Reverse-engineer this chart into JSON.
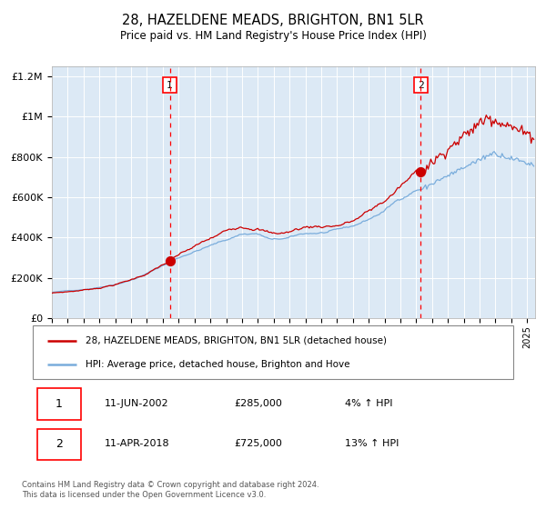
{
  "title": "28, HAZELDENE MEADS, BRIGHTON, BN1 5LR",
  "subtitle": "Price paid vs. HM Land Registry's House Price Index (HPI)",
  "legend_line1": "28, HAZELDENE MEADS, BRIGHTON, BN1 5LR (detached house)",
  "legend_line2": "HPI: Average price, detached house, Brighton and Hove",
  "footer": "Contains HM Land Registry data © Crown copyright and database right 2024.\nThis data is licensed under the Open Government Licence v3.0.",
  "annotation1_date": "11-JUN-2002",
  "annotation1_price": "£285,000",
  "annotation1_hpi": "4% ↑ HPI",
  "annotation1_year": 2002.44,
  "annotation1_value": 285000,
  "annotation2_date": "11-APR-2018",
  "annotation2_price": "£725,000",
  "annotation2_hpi": "13% ↑ HPI",
  "annotation2_year": 2018.28,
  "annotation2_value": 725000,
  "price_color": "#cc0000",
  "hpi_color": "#7aaddc",
  "plot_bg": "#dce9f5",
  "ylim": [
    0,
    1250000
  ],
  "xmin": 1995.0,
  "xmax": 2025.5,
  "yticks": [
    0,
    200000,
    400000,
    600000,
    800000,
    1000000,
    1200000
  ]
}
